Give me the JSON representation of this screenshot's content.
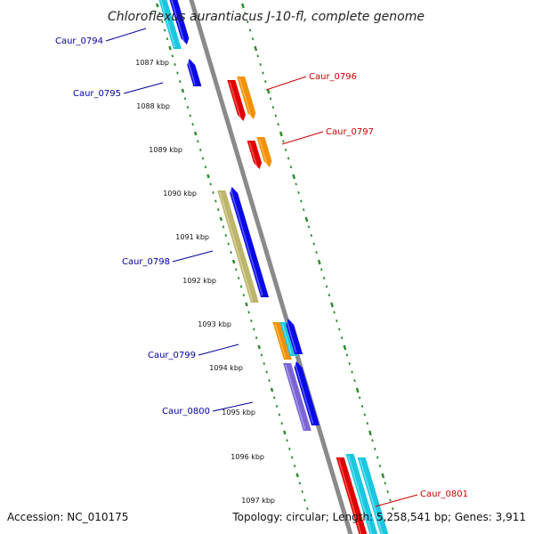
{
  "title": "Chloroflexus aurantiacus J-10-fl, complete genome",
  "footer": {
    "accession": "Accession: NC_010175",
    "summary": "Topology: circular; Length: 5,258,541 bp; Genes: 3,911"
  },
  "colors": {
    "blue": "#0a0ae8",
    "cyan": "#19c8e0",
    "red": "#e00000",
    "orange": "#f59000",
    "khaki": "#bdb56a",
    "purple": "#7a64d6",
    "backbone": "#8a8a8a",
    "tick": "#2a8a2a",
    "label_reverse": "#00009e",
    "label_forward": "#cc0000"
  },
  "kbp_ticks": [
    "1087 kbp",
    "1088 kbp",
    "1089 kbp",
    "1090 kbp",
    "1091 kbp",
    "1092 kbp",
    "1093 kbp",
    "1094 kbp",
    "1095 kbp",
    "1096 kbp",
    "1097 kbp"
  ],
  "gene_labels": [
    {
      "text": "Caur_0794",
      "strand": "reverse"
    },
    {
      "text": "Caur_0795",
      "strand": "reverse"
    },
    {
      "text": "Caur_0798",
      "strand": "reverse"
    },
    {
      "text": "Caur_0799",
      "strand": "reverse"
    },
    {
      "text": "Caur_0800",
      "strand": "reverse"
    },
    {
      "text": "Caur_0796",
      "strand": "forward"
    },
    {
      "text": "Caur_0797",
      "strand": "forward"
    },
    {
      "text": "Caur_0801",
      "strand": "forward"
    }
  ]
}
